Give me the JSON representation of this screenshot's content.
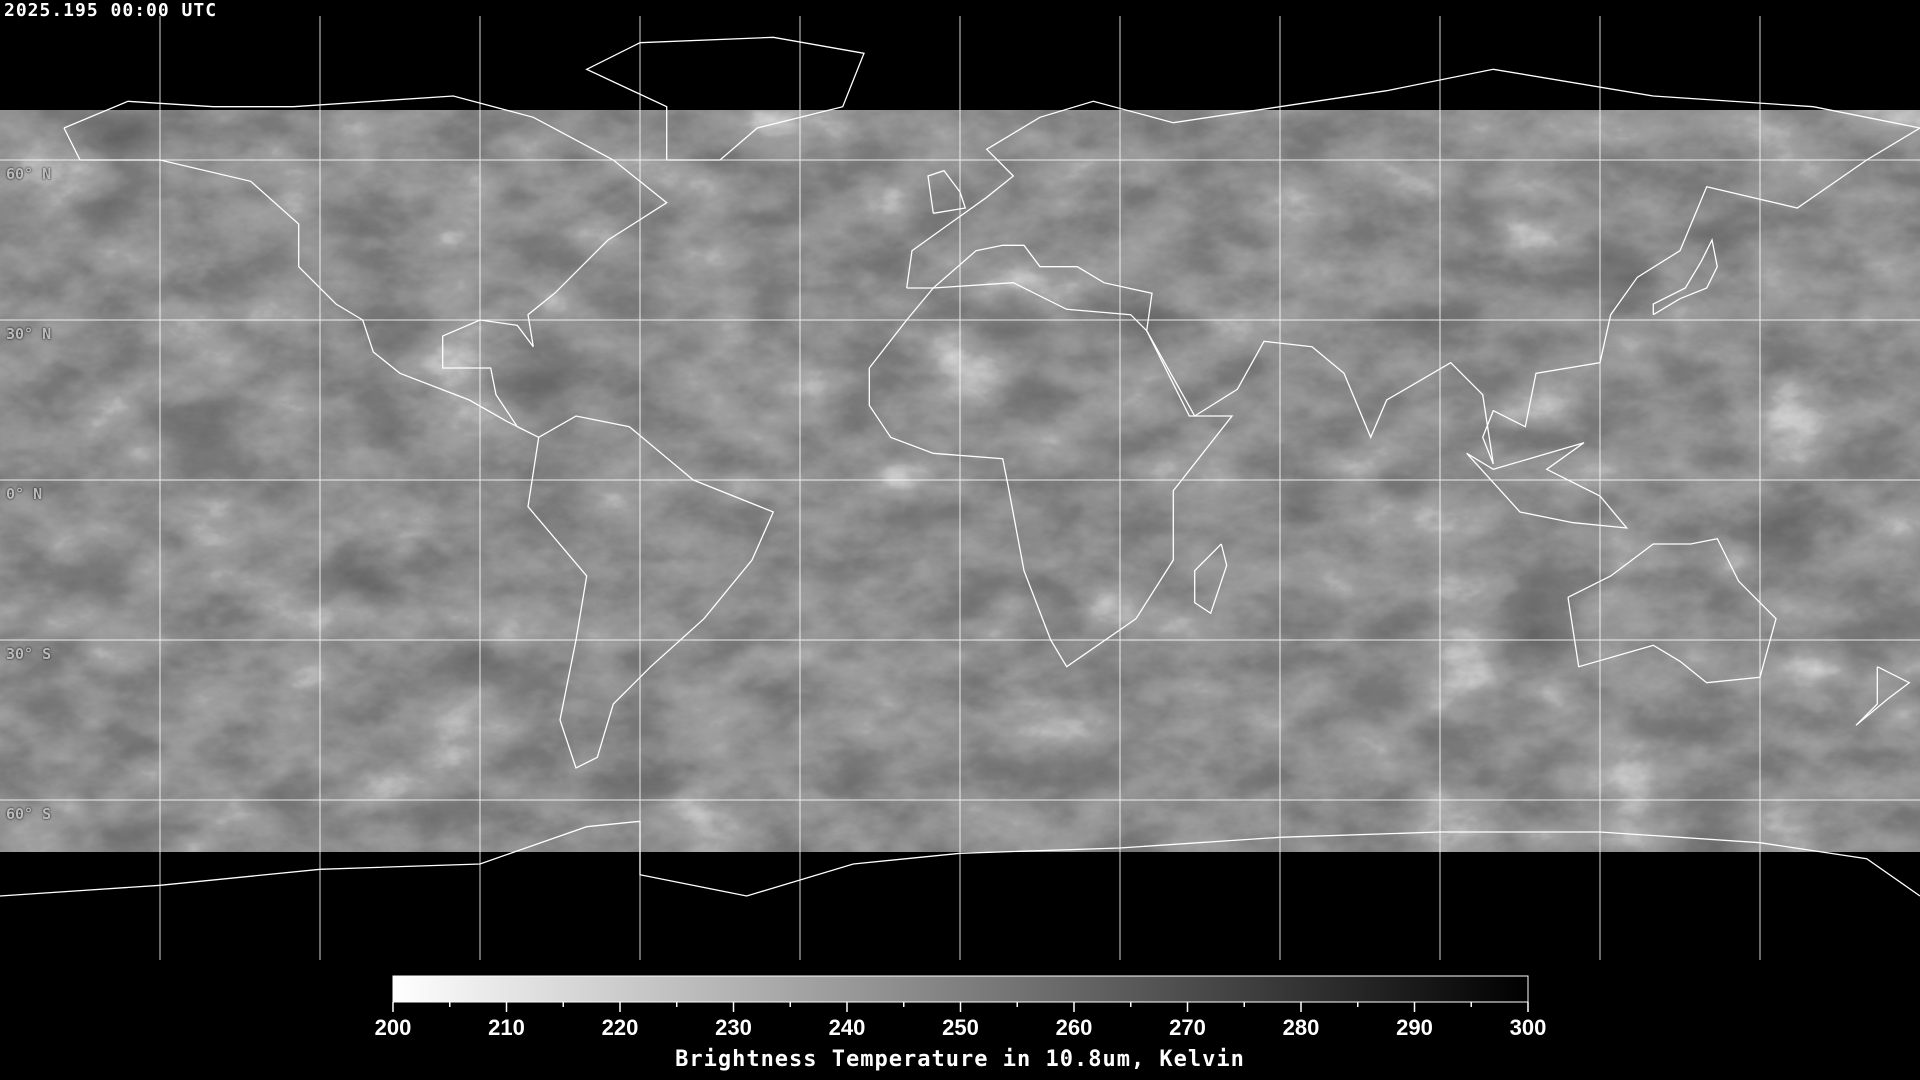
{
  "header": {
    "timestamp": "2025.195 00:00 UTC"
  },
  "map": {
    "projection": "equirectangular",
    "lon_range": [
      -180,
      180
    ],
    "lat_range": [
      -90,
      90
    ],
    "grid_spacing_deg": 30,
    "gridline_color": "#ffffff",
    "coastline_color": "#ffffff",
    "lat_labels": [
      {
        "lat": 60,
        "text": "60° N"
      },
      {
        "lat": 30,
        "text": "30° N"
      },
      {
        "lat": 0,
        "text": "0° N"
      },
      {
        "lat": -30,
        "text": "30° S"
      },
      {
        "lat": -60,
        "text": "60° S"
      }
    ]
  },
  "colorbar": {
    "min": 200,
    "max": 300,
    "colormap": "white-to-black",
    "tick_labels": [
      "200",
      "210",
      "220",
      "230",
      "240",
      "250",
      "260",
      "270",
      "280",
      "290",
      "300"
    ],
    "minor_tick_step": 5,
    "title": "Brightness Temperature in 10.8um, Kelvin"
  }
}
